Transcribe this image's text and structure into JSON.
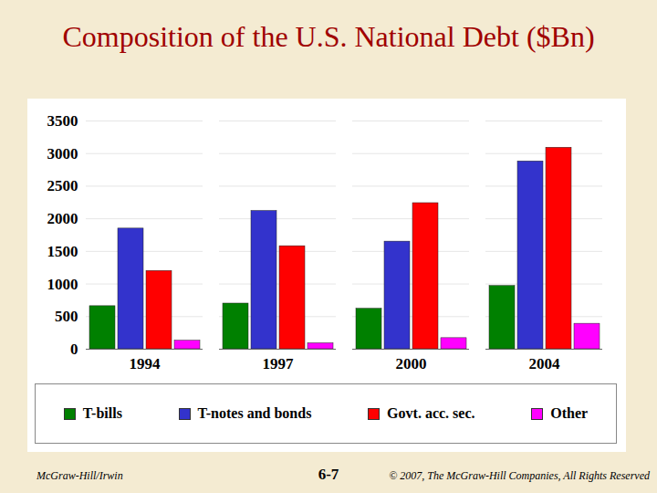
{
  "chart_data": {
    "type": "bar",
    "title": "Composition of the U.S. National Debt ($Bn)",
    "categories": [
      "1994",
      "1997",
      "2000",
      "2004"
    ],
    "series": [
      {
        "name": "T-bills",
        "color": "#008000",
        "values": [
          660,
          700,
          620,
          970
        ]
      },
      {
        "name": "T-notes and bonds",
        "color": "#3333cc",
        "values": [
          1850,
          2120,
          1650,
          2880
        ]
      },
      {
        "name": "Govt. acc. sec.",
        "color": "#ff0000",
        "values": [
          1200,
          1580,
          2240,
          3090
        ]
      },
      {
        "name": "Other",
        "color": "#ff00ff",
        "values": [
          130,
          90,
          170,
          390
        ]
      }
    ],
    "ylim": [
      0,
      3500
    ],
    "yticks": [
      0,
      500,
      1000,
      1500,
      2000,
      2500,
      3000,
      3500
    ],
    "grid": true,
    "legend": "bottom",
    "annotations": [
      "McGraw-Hill/Irwin",
      "6-7",
      "© 2007, The McGraw-Hill Companies, All Rights Reserved"
    ]
  }
}
